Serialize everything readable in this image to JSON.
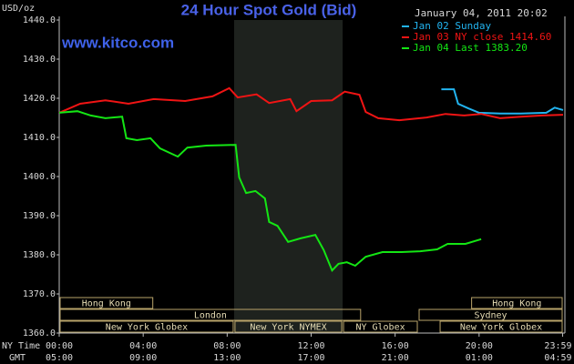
{
  "chart_data": {
    "type": "line",
    "title": "24 Hour Spot Gold (Bid)",
    "watermark": "www.kitco.com",
    "y_label": "USD/oz",
    "legend_title": "January 04, 2011 20:02",
    "x_row_label": "NY Time",
    "x2_row_label": "GMT",
    "xlim": [
      0,
      24
    ],
    "ylim": [
      1360,
      1440
    ],
    "xticks": [
      {
        "value": 0,
        "label": "00:00"
      },
      {
        "value": 4,
        "label": "04:00"
      },
      {
        "value": 8,
        "label": "08:00"
      },
      {
        "value": 12,
        "label": "12:00"
      },
      {
        "value": 16,
        "label": "16:00"
      },
      {
        "value": 20,
        "label": "20:00"
      },
      {
        "value": 23.98,
        "label": "23:59"
      }
    ],
    "gmt_labels": [
      "05:00",
      "09:00",
      "13:00",
      "17:00",
      "21:00",
      "01:00",
      "04:59"
    ],
    "yticks": [
      {
        "value": 1360,
        "label": "1360.0"
      },
      {
        "value": 1370,
        "label": "1370.0"
      },
      {
        "value": 1380,
        "label": "1380.0"
      },
      {
        "value": 1390,
        "label": "1390.0"
      },
      {
        "value": 1400,
        "label": "1400.0"
      },
      {
        "value": 1410,
        "label": "1410.0"
      },
      {
        "value": 1420,
        "label": "1420.0"
      },
      {
        "value": 1430,
        "label": "1430.0"
      },
      {
        "value": 1440,
        "label": "1440.0"
      }
    ],
    "shade": [
      8.33,
      13.5
    ],
    "sessions": [
      {
        "label": "Hong Kong",
        "start": 0,
        "end": 4.5,
        "row": 0
      },
      {
        "label": "Hong Kong",
        "start": 19.6,
        "end": 24,
        "row": 0
      },
      {
        "label": "London",
        "start": 0,
        "end": 14.4,
        "row": 1
      },
      {
        "label": "Sydney",
        "start": 17.1,
        "end": 24,
        "row": 1
      },
      {
        "label": "New York Globex",
        "start": 0,
        "end": 8.33,
        "row": 2
      },
      {
        "label": "New York NYMEX",
        "start": 8.33,
        "end": 13.5,
        "row": 2
      },
      {
        "label": "NY Globex",
        "start": 13.5,
        "end": 17.1,
        "row": 2
      },
      {
        "label": "New York Globex",
        "start": 18.1,
        "end": 24,
        "row": 2
      }
    ],
    "series": [
      {
        "name": "Jan 02 Sunday",
        "color": "#22b4f0",
        "x": [
          18.2,
          18.8,
          19.0,
          19.5,
          20.0,
          21.0,
          22.0,
          23.2,
          23.6,
          24.0
        ],
        "values": [
          1422.3,
          1422.3,
          1418.6,
          1417.4,
          1416.3,
          1416.1,
          1416.1,
          1416.3,
          1417.6,
          1417.0
        ]
      },
      {
        "name": "Jan 03 NY close 1414.60",
        "color": "#f01414",
        "x": [
          0,
          1.0,
          2.2,
          3.3,
          4.5,
          6.0,
          7.3,
          8.1,
          8.5,
          9.4,
          10.0,
          11.0,
          11.3,
          12.0,
          13.0,
          13.6,
          14.3,
          14.6,
          15.2,
          16.2,
          17.5,
          18.4,
          19.3,
          20.1,
          21.0,
          22.0,
          23.0,
          24.0
        ],
        "values": [
          1416.3,
          1418.6,
          1419.5,
          1418.6,
          1419.8,
          1419.3,
          1420.5,
          1422.6,
          1420.2,
          1421.0,
          1418.8,
          1419.8,
          1416.7,
          1419.3,
          1419.5,
          1421.7,
          1420.9,
          1416.5,
          1414.9,
          1414.4,
          1415.1,
          1416.0,
          1415.6,
          1416.0,
          1414.9,
          1415.3,
          1415.6,
          1415.8
        ]
      },
      {
        "name": "Jan 04 Last 1383.20",
        "color": "#14e614",
        "x": [
          0,
          0.87,
          1.5,
          2.2,
          3.0,
          3.2,
          3.7,
          4.35,
          4.8,
          5.65,
          6.1,
          7.0,
          8.4,
          8.57,
          8.9,
          9.35,
          9.8,
          10.0,
          10.4,
          10.9,
          11.5,
          12.2,
          12.6,
          13.0,
          13.3,
          13.7,
          14.1,
          14.6,
          15.4,
          16.3,
          17.2,
          18.0,
          18.5,
          19.35,
          20.1
        ],
        "values": [
          1416.3,
          1416.7,
          1415.6,
          1414.9,
          1415.3,
          1409.8,
          1409.3,
          1409.8,
          1407.2,
          1405.1,
          1407.4,
          1407.9,
          1408.1,
          1399.8,
          1395.8,
          1396.3,
          1394.4,
          1388.4,
          1387.4,
          1383.3,
          1384.2,
          1385.1,
          1381.2,
          1376.0,
          1377.7,
          1378.1,
          1377.2,
          1379.5,
          1380.7,
          1380.7,
          1380.9,
          1381.4,
          1382.8,
          1382.8,
          1384.0
        ]
      }
    ]
  }
}
